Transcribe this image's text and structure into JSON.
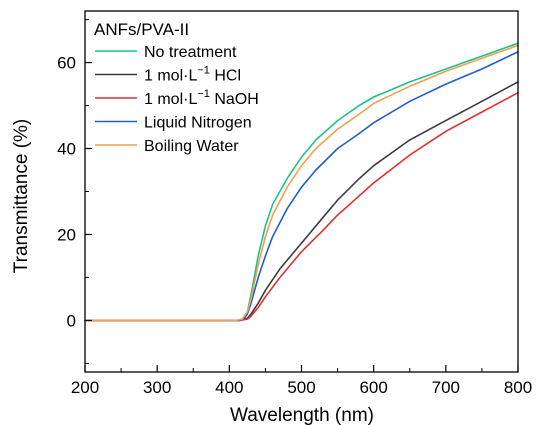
{
  "chart_data": {
    "type": "line",
    "title": "",
    "xlabel": "Wavelength (nm)",
    "ylabel": "Transmittance (%)",
    "xlim": [
      200,
      800
    ],
    "ylim": [
      -12,
      72
    ],
    "xticks": [
      200,
      300,
      400,
      500,
      600,
      700,
      800
    ],
    "yticks": [
      0,
      20,
      40,
      60
    ],
    "grid": false,
    "legend": {
      "title": "ANFs/PVA-II",
      "position": "top-left",
      "frame": false
    },
    "series": [
      {
        "name": "No treatment",
        "label_parts": {
          "base": "No treatment",
          "sup": "",
          "after": ""
        },
        "color": "#1fbf8f",
        "x": [
          200,
          410,
          418,
          425,
          430,
          440,
          450,
          460,
          480,
          500,
          520,
          550,
          580,
          600,
          650,
          700,
          750,
          800
        ],
        "y": [
          0,
          0,
          0.3,
          2,
          6,
          15,
          22,
          27,
          33,
          38,
          42,
          46.5,
          50,
          52,
          55.5,
          58.5,
          61.5,
          64.5
        ]
      },
      {
        "name": "1 mol·L−1 HCl",
        "label_parts": {
          "base": "1 mol·L",
          "sup": "−1",
          "after": " HCl"
        },
        "color": "#3c3c3c",
        "x": [
          200,
          415,
          425,
          430,
          440,
          450,
          470,
          500,
          530,
          550,
          580,
          600,
          650,
          700,
          750,
          800
        ],
        "y": [
          0,
          0,
          0.5,
          1.5,
          4,
          7,
          12,
          18,
          24,
          28,
          33,
          36,
          42,
          46.5,
          51,
          55.5
        ]
      },
      {
        "name": "1 mol·L−1 NaOH",
        "label_parts": {
          "base": "1 mol·L",
          "sup": "−1",
          "after": " NaOH"
        },
        "color": "#e03030",
        "x": [
          200,
          415,
          425,
          430,
          440,
          450,
          470,
          500,
          530,
          550,
          580,
          600,
          650,
          700,
          750,
          800
        ],
        "y": [
          0,
          0,
          0.3,
          1,
          3,
          5.5,
          10,
          16,
          21,
          24.5,
          29,
          32,
          38.5,
          44,
          48.5,
          53
        ]
      },
      {
        "name": "Liquid Nitrogen",
        "label_parts": {
          "base": "Liquid Nitrogen",
          "sup": "",
          "after": ""
        },
        "color": "#1f5fd0",
        "x": [
          200,
          412,
          420,
          425,
          430,
          440,
          450,
          460,
          480,
          500,
          520,
          550,
          580,
          600,
          650,
          700,
          750,
          800
        ],
        "y": [
          0,
          0,
          0.3,
          1.5,
          4,
          10,
          15,
          19.5,
          26,
          31,
          35,
          40,
          43.5,
          46,
          51,
          55,
          58.5,
          62.5
        ]
      },
      {
        "name": "Boiling Water",
        "label_parts": {
          "base": "Boiling Water",
          "sup": "",
          "after": ""
        },
        "color": "#f0a050",
        "x": [
          200,
          410,
          418,
          425,
          430,
          440,
          450,
          460,
          480,
          500,
          520,
          550,
          580,
          600,
          650,
          700,
          750,
          800
        ],
        "y": [
          0,
          0,
          0.3,
          2,
          5,
          13,
          19.5,
          24.5,
          31,
          36,
          40,
          44.5,
          48,
          50.5,
          54.5,
          58,
          61,
          64
        ]
      }
    ]
  }
}
